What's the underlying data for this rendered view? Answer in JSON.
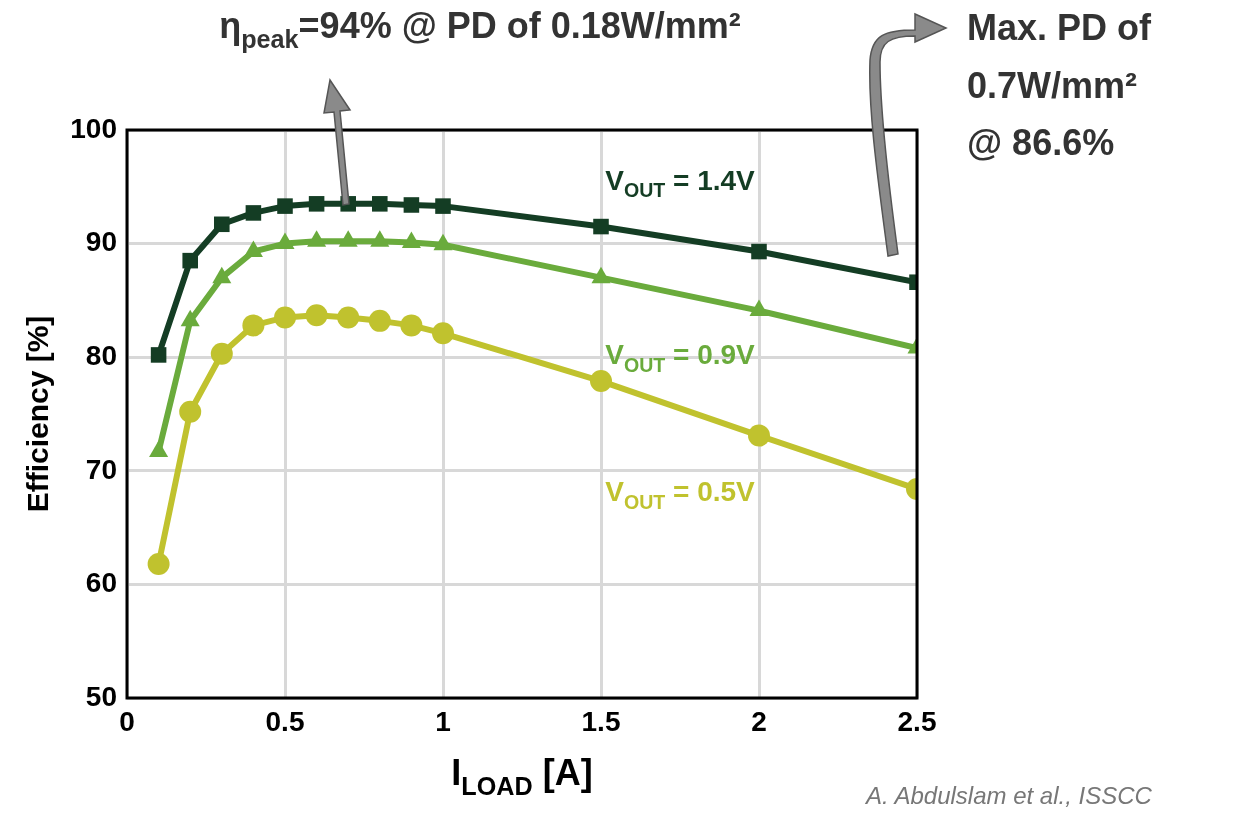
{
  "chart_data": {
    "type": "line",
    "xlabel": "I$_{LOAD}$ [A]",
    "ylabel": "Efficiency [%]",
    "x": [
      0.1,
      0.2,
      0.3,
      0.4,
      0.5,
      0.6,
      0.7,
      0.8,
      0.9,
      1.0,
      1.5,
      2.0,
      2.5
    ],
    "xlim": [
      0,
      2.5
    ],
    "xticks": [
      0,
      0.5,
      1,
      1.5,
      2,
      2.5
    ],
    "ylim": [
      50,
      100
    ],
    "yticks": [
      50,
      60,
      70,
      80,
      90,
      100
    ],
    "grid": true,
    "legend": false,
    "line_style": "solid",
    "series": [
      {
        "name": "V$_{OUT}$ = 1.4V",
        "color": "#143d24",
        "marker": "square",
        "values": [
          80.2,
          88.5,
          91.7,
          92.7,
          93.3,
          93.5,
          93.5,
          93.5,
          93.4,
          93.3,
          91.5,
          89.3,
          86.6
        ]
      },
      {
        "name": "V$_{OUT}$ = 0.9V",
        "color": "#6aab3c",
        "marker": "triangle",
        "values": [
          71.7,
          83.2,
          87.0,
          89.3,
          90.0,
          90.2,
          90.2,
          90.2,
          90.1,
          89.9,
          87.0,
          84.1,
          80.8
        ]
      },
      {
        "name": "V$_{OUT}$ = 0.5V",
        "color": "#c0c22e",
        "marker": "circle",
        "values": [
          61.8,
          75.2,
          80.3,
          82.8,
          83.5,
          83.7,
          83.5,
          83.2,
          82.8,
          82.1,
          77.9,
          73.1,
          68.4
        ]
      }
    ],
    "annotations": [
      "η$_{peak}$=94% @ PD of 0.18W/mm²",
      "Max. PD of",
      "0.7W/mm²",
      "@ 86.6%",
      "A. Abdulslam et al., ISSCC"
    ]
  }
}
